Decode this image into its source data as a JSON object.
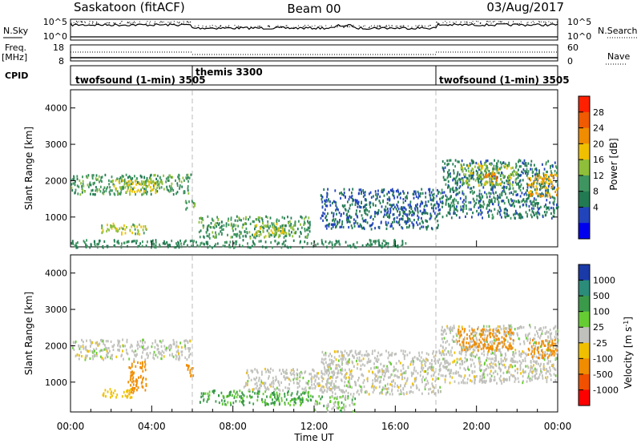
{
  "header": {
    "station": "Saskatoon (fitACF)",
    "beam": "Beam 00",
    "date": "03/Aug/2017"
  },
  "panels": {
    "nsky": {
      "label": "N.Sky",
      "ticks": [
        "10^5",
        "10^0"
      ],
      "right_ticks": [
        "10^5",
        "10^0"
      ],
      "right_label": "N.Search"
    },
    "freq": {
      "label_top": "Freq.",
      "label_bottom": "[MHz]",
      "ticks": [
        "18",
        "8"
      ],
      "right_ticks": [
        "60",
        "0"
      ],
      "right_label": "Nave"
    },
    "cpid": {
      "label": "CPID",
      "segments": [
        {
          "text": "twofsound (1-min) 3505",
          "start_hour": 0
        },
        {
          "text": "themis 3300",
          "start_hour": 6
        },
        {
          "text": "twofsound (1-min) 3505",
          "start_hour": 18
        }
      ]
    }
  },
  "x_axis": {
    "label": "Time UT",
    "ticks": [
      "00:00",
      "04:00",
      "08:00",
      "12:00",
      "16:00",
      "20:00",
      "00:00"
    ],
    "tick_hours": [
      0,
      4,
      8,
      12,
      16,
      20,
      24
    ],
    "range_hours": [
      0,
      24
    ]
  },
  "power_colorbar": {
    "label": "Power [dB]",
    "ticks": [
      "28",
      "24",
      "20",
      "16",
      "12",
      "8",
      "4"
    ],
    "colors": [
      "#0000ee",
      "#2244bb",
      "#227a52",
      "#3f9560",
      "#8fbf3a",
      "#f0c000",
      "#f08c00",
      "#f05a00",
      "#ff2000"
    ]
  },
  "velocity_colorbar": {
    "label": "Velocity [m s",
    "label_sup": "-1",
    "label_end": "]",
    "ticks": [
      "1000",
      "500",
      "100",
      "25",
      "-25",
      "-100",
      "-500",
      "-1000"
    ],
    "colors": [
      "#1a3aa8",
      "#2b8c7a",
      "#3a9a4a",
      "#66cc33",
      "#c0c0bc",
      "#f0c000",
      "#f08c00",
      "#f05000",
      "#ff0000"
    ]
  },
  "chart_data": [
    {
      "type": "heatmap",
      "title": "Power",
      "ylabel": "Slant Range [km]",
      "xlabel": "",
      "ylim": [
        180,
        4500
      ],
      "yticks": [
        1000,
        2000,
        3000,
        4000
      ],
      "xlim": [
        0,
        24
      ],
      "units": "dB",
      "regions": [
        {
          "t0": 0.0,
          "t1": 5.9,
          "r0": 1650,
          "r1": 2200,
          "level": 14
        },
        {
          "t0": 2.0,
          "t1": 4.5,
          "r0": 1700,
          "r1": 2050,
          "level": 20
        },
        {
          "t0": 1.5,
          "t1": 3.8,
          "r0": 550,
          "r1": 850,
          "level": 18
        },
        {
          "t0": 5.6,
          "t1": 6.1,
          "r0": 1200,
          "r1": 1500,
          "level": 16
        },
        {
          "t0": 6.3,
          "t1": 11.8,
          "r0": 450,
          "r1": 1050,
          "level": 14
        },
        {
          "t0": 9.0,
          "t1": 10.5,
          "r0": 500,
          "r1": 850,
          "level": 20
        },
        {
          "t0": 12.3,
          "t1": 18.2,
          "r0": 700,
          "r1": 1800,
          "level": 8
        },
        {
          "t0": 18.2,
          "t1": 24.0,
          "r0": 1000,
          "r1": 2600,
          "level": 10
        },
        {
          "t0": 19.2,
          "t1": 22.0,
          "r0": 1900,
          "r1": 2500,
          "level": 18
        },
        {
          "t0": 20.3,
          "t1": 21.0,
          "r0": 2000,
          "r1": 2300,
          "level": 26
        },
        {
          "t0": 22.5,
          "t1": 24.0,
          "r0": 1600,
          "r1": 2200,
          "level": 24
        },
        {
          "t0": 0.0,
          "t1": 16.5,
          "r0": 190,
          "r1": 400,
          "level": 12
        }
      ]
    },
    {
      "type": "heatmap",
      "title": "Velocity",
      "ylabel": "Slant Range [km]",
      "xlabel": "Time UT",
      "ylim": [
        180,
        4500
      ],
      "yticks": [
        1000,
        2000,
        3000,
        4000
      ],
      "xlim": [
        0,
        24
      ],
      "units": "m/s",
      "regions": [
        {
          "t0": 0.0,
          "t1": 5.9,
          "r0": 1650,
          "r1": 2200,
          "level": 0
        },
        {
          "t0": 2.8,
          "t1": 3.7,
          "r0": 700,
          "r1": 1600,
          "level": -150
        },
        {
          "t0": 1.5,
          "t1": 3.0,
          "r0": 600,
          "r1": 850,
          "level": -60
        },
        {
          "t0": 5.6,
          "t1": 6.1,
          "r0": 1200,
          "r1": 1500,
          "level": -400
        },
        {
          "t0": 6.3,
          "t1": 12.0,
          "r0": 400,
          "r1": 800,
          "level": 60
        },
        {
          "t0": 8.5,
          "t1": 13.0,
          "r0": 800,
          "r1": 1400,
          "level": 0
        },
        {
          "t0": 12.3,
          "t1": 18.2,
          "r0": 700,
          "r1": 1900,
          "level": 0
        },
        {
          "t0": 18.2,
          "t1": 24.0,
          "r0": 1000,
          "r1": 2600,
          "level": 0
        },
        {
          "t0": 19.0,
          "t1": 21.8,
          "r0": 1900,
          "r1": 2500,
          "level": -300
        },
        {
          "t0": 22.5,
          "t1": 24.0,
          "r0": 1700,
          "r1": 2200,
          "level": -250
        },
        {
          "t0": 12.0,
          "t1": 14.0,
          "r0": 200,
          "r1": 650,
          "level": 30
        }
      ]
    }
  ]
}
